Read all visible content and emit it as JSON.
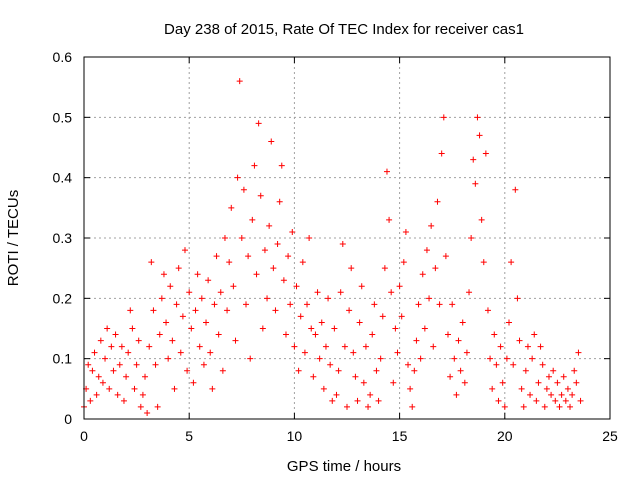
{
  "chart_data": {
    "type": "scatter",
    "title": "Day 238 of 2015, Rate Of TEC Index for receiver cas1",
    "xlabel": "GPS time / hours",
    "ylabel": "ROTI / TECUs",
    "xlim": [
      0,
      25
    ],
    "ylim": [
      0,
      0.6
    ],
    "x_ticks": [
      "0",
      "5",
      "10",
      "15",
      "20",
      "25"
    ],
    "y_ticks": [
      "0",
      "0.1",
      "0.2",
      "0.3",
      "0.4",
      "0.5",
      "0.6"
    ],
    "grid": true,
    "marker": "plus",
    "color": "#ff0000",
    "series": [
      {
        "points": [
          [
            0.0,
            0.02
          ],
          [
            0.1,
            0.05
          ],
          [
            0.2,
            0.09
          ],
          [
            0.3,
            0.03
          ],
          [
            0.4,
            0.08
          ],
          [
            0.5,
            0.11
          ],
          [
            0.6,
            0.04
          ],
          [
            0.7,
            0.07
          ],
          [
            0.8,
            0.13
          ],
          [
            0.9,
            0.06
          ],
          [
            1.0,
            0.1
          ],
          [
            1.1,
            0.15
          ],
          [
            1.2,
            0.05
          ],
          [
            1.3,
            0.12
          ],
          [
            1.4,
            0.08
          ],
          [
            1.5,
            0.14
          ],
          [
            1.6,
            0.04
          ],
          [
            1.7,
            0.09
          ],
          [
            1.8,
            0.12
          ],
          [
            1.9,
            0.03
          ],
          [
            2.0,
            0.07
          ],
          [
            2.1,
            0.11
          ],
          [
            2.2,
            0.18
          ],
          [
            2.3,
            0.15
          ],
          [
            2.4,
            0.05
          ],
          [
            2.5,
            0.09
          ],
          [
            2.6,
            0.13
          ],
          [
            2.7,
            0.02
          ],
          [
            2.8,
            0.04
          ],
          [
            2.9,
            0.07
          ],
          [
            3.0,
            0.01
          ],
          [
            3.1,
            0.12
          ],
          [
            3.2,
            0.26
          ],
          [
            3.3,
            0.18
          ],
          [
            3.4,
            0.09
          ],
          [
            3.5,
            0.02
          ],
          [
            3.6,
            0.14
          ],
          [
            3.7,
            0.2
          ],
          [
            3.8,
            0.24
          ],
          [
            3.9,
            0.16
          ],
          [
            4.0,
            0.1
          ],
          [
            4.1,
            0.22
          ],
          [
            4.2,
            0.13
          ],
          [
            4.3,
            0.05
          ],
          [
            4.4,
            0.19
          ],
          [
            4.5,
            0.25
          ],
          [
            4.6,
            0.11
          ],
          [
            4.7,
            0.17
          ],
          [
            4.8,
            0.28
          ],
          [
            4.9,
            0.08
          ],
          [
            5.0,
            0.21
          ],
          [
            5.1,
            0.15
          ],
          [
            5.2,
            0.06
          ],
          [
            5.3,
            0.18
          ],
          [
            5.4,
            0.24
          ],
          [
            5.5,
            0.12
          ],
          [
            5.6,
            0.2
          ],
          [
            5.7,
            0.09
          ],
          [
            5.8,
            0.16
          ],
          [
            5.9,
            0.23
          ],
          [
            6.0,
            0.11
          ],
          [
            6.1,
            0.05
          ],
          [
            6.2,
            0.19
          ],
          [
            6.3,
            0.27
          ],
          [
            6.4,
            0.14
          ],
          [
            6.5,
            0.21
          ],
          [
            6.6,
            0.08
          ],
          [
            6.7,
            0.3
          ],
          [
            6.8,
            0.18
          ],
          [
            6.9,
            0.26
          ],
          [
            7.0,
            0.35
          ],
          [
            7.1,
            0.22
          ],
          [
            7.2,
            0.13
          ],
          [
            7.3,
            0.4
          ],
          [
            7.4,
            0.56
          ],
          [
            7.5,
            0.3
          ],
          [
            7.6,
            0.38
          ],
          [
            7.7,
            0.19
          ],
          [
            7.8,
            0.27
          ],
          [
            7.9,
            0.1
          ],
          [
            8.0,
            0.33
          ],
          [
            8.1,
            0.42
          ],
          [
            8.2,
            0.24
          ],
          [
            8.3,
            0.49
          ],
          [
            8.4,
            0.37
          ],
          [
            8.5,
            0.15
          ],
          [
            8.6,
            0.28
          ],
          [
            8.7,
            0.2
          ],
          [
            8.8,
            0.32
          ],
          [
            8.9,
            0.46
          ],
          [
            9.0,
            0.25
          ],
          [
            9.1,
            0.18
          ],
          [
            9.2,
            0.29
          ],
          [
            9.3,
            0.36
          ],
          [
            9.4,
            0.42
          ],
          [
            9.5,
            0.23
          ],
          [
            9.6,
            0.14
          ],
          [
            9.7,
            0.27
          ],
          [
            9.8,
            0.19
          ],
          [
            9.9,
            0.31
          ],
          [
            10.0,
            0.12
          ],
          [
            10.1,
            0.22
          ],
          [
            10.2,
            0.08
          ],
          [
            10.3,
            0.17
          ],
          [
            10.4,
            0.26
          ],
          [
            10.5,
            0.11
          ],
          [
            10.6,
            0.19
          ],
          [
            10.7,
            0.3
          ],
          [
            10.8,
            0.15
          ],
          [
            10.9,
            0.07
          ],
          [
            11.0,
            0.14
          ],
          [
            11.1,
            0.21
          ],
          [
            11.2,
            0.1
          ],
          [
            11.3,
            0.16
          ],
          [
            11.4,
            0.05
          ],
          [
            11.5,
            0.12
          ],
          [
            11.6,
            0.2
          ],
          [
            11.7,
            0.09
          ],
          [
            11.8,
            0.03
          ],
          [
            11.9,
            0.15
          ],
          [
            12.0,
            0.04
          ],
          [
            12.1,
            0.08
          ],
          [
            12.2,
            0.21
          ],
          [
            12.3,
            0.29
          ],
          [
            12.4,
            0.12
          ],
          [
            12.5,
            0.02
          ],
          [
            12.6,
            0.18
          ],
          [
            12.7,
            0.25
          ],
          [
            12.8,
            0.11
          ],
          [
            12.9,
            0.07
          ],
          [
            13.0,
            0.03
          ],
          [
            13.1,
            0.16
          ],
          [
            13.2,
            0.22
          ],
          [
            13.3,
            0.06
          ],
          [
            13.4,
            0.12
          ],
          [
            13.5,
            0.02
          ],
          [
            13.6,
            0.04
          ],
          [
            13.7,
            0.14
          ],
          [
            13.8,
            0.19
          ],
          [
            13.9,
            0.08
          ],
          [
            14.0,
            0.03
          ],
          [
            14.1,
            0.1
          ],
          [
            14.2,
            0.17
          ],
          [
            14.3,
            0.25
          ],
          [
            14.4,
            0.41
          ],
          [
            14.5,
            0.33
          ],
          [
            14.6,
            0.21
          ],
          [
            14.7,
            0.06
          ],
          [
            14.8,
            0.15
          ],
          [
            14.9,
            0.11
          ],
          [
            15.0,
            0.22
          ],
          [
            15.1,
            0.17
          ],
          [
            15.2,
            0.26
          ],
          [
            15.3,
            0.31
          ],
          [
            15.4,
            0.09
          ],
          [
            15.5,
            0.05
          ],
          [
            15.6,
            0.02
          ],
          [
            15.7,
            0.08
          ],
          [
            15.8,
            0.13
          ],
          [
            15.9,
            0.19
          ],
          [
            16.0,
            0.1
          ],
          [
            16.1,
            0.24
          ],
          [
            16.2,
            0.15
          ],
          [
            16.3,
            0.28
          ],
          [
            16.4,
            0.2
          ],
          [
            16.5,
            0.32
          ],
          [
            16.6,
            0.12
          ],
          [
            16.7,
            0.25
          ],
          [
            16.8,
            0.36
          ],
          [
            16.9,
            0.19
          ],
          [
            17.0,
            0.44
          ],
          [
            17.1,
            0.5
          ],
          [
            17.2,
            0.27
          ],
          [
            17.3,
            0.14
          ],
          [
            17.4,
            0.07
          ],
          [
            17.5,
            0.19
          ],
          [
            17.6,
            0.1
          ],
          [
            17.7,
            0.04
          ],
          [
            17.8,
            0.13
          ],
          [
            17.9,
            0.08
          ],
          [
            18.0,
            0.16
          ],
          [
            18.1,
            0.06
          ],
          [
            18.2,
            0.11
          ],
          [
            18.3,
            0.21
          ],
          [
            18.4,
            0.3
          ],
          [
            18.5,
            0.43
          ],
          [
            18.6,
            0.39
          ],
          [
            18.7,
            0.5
          ],
          [
            18.8,
            0.47
          ],
          [
            18.9,
            0.33
          ],
          [
            19.0,
            0.26
          ],
          [
            19.1,
            0.44
          ],
          [
            19.2,
            0.18
          ],
          [
            19.3,
            0.1
          ],
          [
            19.4,
            0.05
          ],
          [
            19.5,
            0.14
          ],
          [
            19.6,
            0.09
          ],
          [
            19.7,
            0.03
          ],
          [
            19.8,
            0.12
          ],
          [
            19.9,
            0.06
          ],
          [
            20.0,
            0.02
          ],
          [
            20.1,
            0.1
          ],
          [
            20.2,
            0.16
          ],
          [
            20.3,
            0.26
          ],
          [
            20.4,
            0.09
          ],
          [
            20.5,
            0.38
          ],
          [
            20.6,
            0.2
          ],
          [
            20.7,
            0.13
          ],
          [
            20.8,
            0.05
          ],
          [
            20.9,
            0.02
          ],
          [
            21.0,
            0.08
          ],
          [
            21.1,
            0.12
          ],
          [
            21.2,
            0.04
          ],
          [
            21.3,
            0.1
          ],
          [
            21.4,
            0.14
          ],
          [
            21.5,
            0.03
          ],
          [
            21.6,
            0.06
          ],
          [
            21.7,
            0.12
          ],
          [
            21.8,
            0.09
          ],
          [
            21.9,
            0.02
          ],
          [
            22.0,
            0.05
          ],
          [
            22.1,
            0.07
          ],
          [
            22.2,
            0.04
          ],
          [
            22.3,
            0.08
          ],
          [
            22.4,
            0.03
          ],
          [
            22.5,
            0.06
          ],
          [
            22.6,
            0.02
          ],
          [
            22.7,
            0.04
          ],
          [
            22.8,
            0.07
          ],
          [
            22.9,
            0.03
          ],
          [
            23.0,
            0.05
          ],
          [
            23.1,
            0.02
          ],
          [
            23.2,
            0.04
          ],
          [
            23.3,
            0.08
          ],
          [
            23.4,
            0.06
          ],
          [
            23.5,
            0.11
          ],
          [
            23.6,
            0.03
          ]
        ]
      }
    ]
  }
}
